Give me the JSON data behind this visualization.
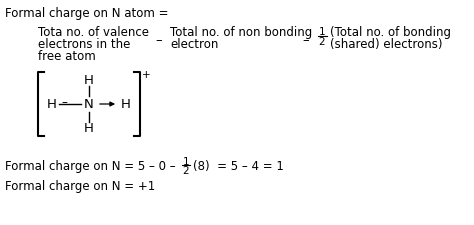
{
  "bg_color": "#ffffff",
  "text_color": "#000000",
  "title": "Formal charge on N atom =",
  "col1": [
    "Tota no. of valence",
    "electrons in the",
    "free atom"
  ],
  "col2": [
    "Total no. of non bonding",
    "electron"
  ],
  "col3a": "(Total no. of bonding",
  "col3b": "(shared) electrons)",
  "frac_num": "1",
  "frac_den": "2",
  "eq_prefix": "Formal charge on N = 5 – 0 – ",
  "eq_suffix": "(8)  = 5 – 4 = 1",
  "result": "Formal charge on N = +1",
  "font_size": 8.5,
  "font_family": "DejaVu Sans"
}
